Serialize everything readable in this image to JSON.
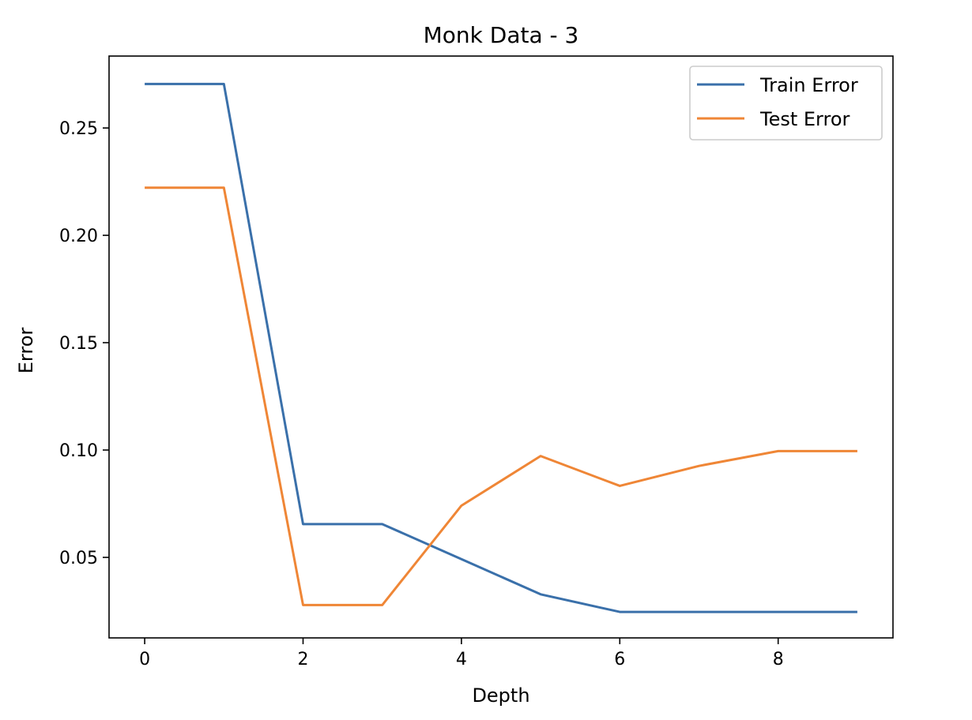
{
  "chart_data": {
    "type": "line",
    "title": "Monk Data - 3",
    "xlabel": "Depth",
    "ylabel": "Error",
    "x": [
      0,
      1,
      2,
      3,
      4,
      5,
      6,
      7,
      8,
      9
    ],
    "xlim": [
      -0.45,
      9.45
    ],
    "ylim": [
      0.0125,
      0.2835
    ],
    "xticks": [
      0,
      2,
      4,
      6,
      8
    ],
    "xtick_labels": [
      "0",
      "2",
      "4",
      "6",
      "8"
    ],
    "yticks": [
      0.05,
      0.1,
      0.15,
      0.2,
      0.25
    ],
    "ytick_labels": [
      "0.05",
      "0.10",
      "0.15",
      "0.20",
      "0.25"
    ],
    "grid": false,
    "legend_position": "top-right",
    "series": [
      {
        "name": "Train Error",
        "color": "#3a70aa",
        "values": [
          0.2705,
          0.2705,
          0.0655,
          0.0655,
          0.0492,
          0.0328,
          0.0246,
          0.0246,
          0.0246,
          0.0246
        ]
      },
      {
        "name": "Test Error",
        "color": "#ef8636",
        "values": [
          0.2222,
          0.2222,
          0.0278,
          0.0278,
          0.0741,
          0.0972,
          0.0833,
          0.0926,
          0.0995,
          0.0995
        ]
      }
    ]
  }
}
